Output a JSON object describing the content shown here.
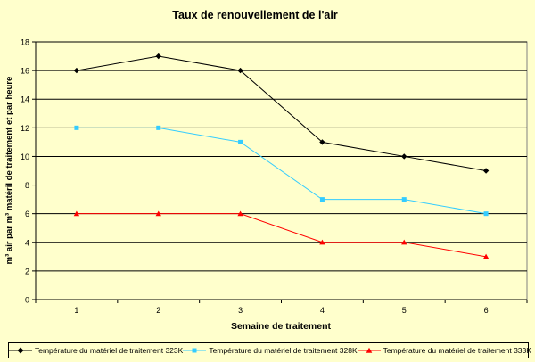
{
  "chart_data": {
    "type": "line",
    "title": "Taux de renouvellement de l'air",
    "xlabel": "Semaine de traitement",
    "ylabel": "m³ air  par m³ matéril de traitement et par heure",
    "categories": [
      1,
      2,
      3,
      4,
      5,
      6
    ],
    "ylim": [
      0,
      18
    ],
    "yticks": [
      0,
      2,
      4,
      6,
      8,
      10,
      12,
      14,
      16,
      18
    ],
    "grid": true,
    "legend_position": "bottom",
    "series": [
      {
        "name": "Température du matériel de traitement 323K",
        "color": "#000000",
        "marker": "diamond",
        "values": [
          16,
          17,
          16,
          11,
          10,
          9
        ]
      },
      {
        "name": "Température du matériel de traitement 328K",
        "color": "#33ccff",
        "marker": "square",
        "values": [
          12,
          12,
          11,
          7,
          7,
          6
        ]
      },
      {
        "name": "Température du matériel de traitement 333K",
        "color": "#ff0000",
        "marker": "triangle",
        "values": [
          6,
          6,
          6,
          4,
          4,
          3
        ]
      }
    ]
  }
}
